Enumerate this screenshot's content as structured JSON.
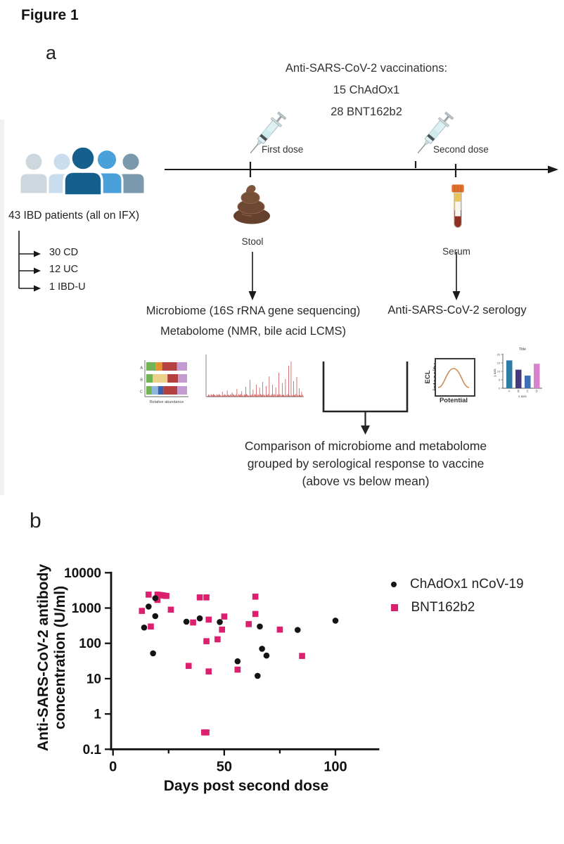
{
  "figure": {
    "label": "Figure 1",
    "panel_a_label": "a",
    "panel_b_label": "b"
  },
  "panel_a": {
    "vaccinations_line1": "Anti-SARS-CoV-2 vaccinations:",
    "vaccinations_line2": "15 ChAdOx1",
    "vaccinations_line3": "28 BNT162b2",
    "first_dose_label": "First dose",
    "second_dose_label": "Second dose",
    "stool_label": "Stool",
    "serum_label": "Serum",
    "patients_title": "43 IBD patients (all on IFX)",
    "patient_groups": [
      "30 CD",
      "12 UC",
      "1 IBD-U"
    ],
    "people_colors": [
      "#cdd7de",
      "#c9ddee",
      "#155f8d",
      "#4aa0d8",
      "#7b99ac"
    ],
    "microbiome_line1": "Microbiome (16S rRNA gene sequencing)",
    "microbiome_line2": "Metabolome (NMR, bile acid LCMS)",
    "serology_label": "Anti-SARS-CoV-2 serology",
    "comparison_line1": "Comparison of microbiome and metabolome",
    "comparison_line2": "grouped by serological response to vaccine",
    "comparison_line3": "(above vs below mean)",
    "thumbnails": {
      "stacked_bar": {
        "xlabel": "Relative abundance",
        "row_labels": [
          "A",
          "B",
          "C"
        ],
        "rows": [
          {
            "segments": [
              {
                "color": "#72b356",
                "w": 0.23
              },
              {
                "color": "#e2952f",
                "w": 0.16
              },
              {
                "color": "#b54040",
                "w": 0.36
              },
              {
                "color": "#c49bd1",
                "w": 0.25
              }
            ]
          },
          {
            "segments": [
              {
                "color": "#72b356",
                "w": 0.16
              },
              {
                "color": "#ecd189",
                "w": 0.36
              },
              {
                "color": "#b54040",
                "w": 0.26
              },
              {
                "color": "#c49bd1",
                "w": 0.22
              }
            ]
          },
          {
            "segments": [
              {
                "color": "#72b356",
                "w": 0.13
              },
              {
                "color": "#90b8dc",
                "w": 0.16
              },
              {
                "color": "#3a62ae",
                "w": 0.13
              },
              {
                "color": "#b54040",
                "w": 0.34
              },
              {
                "color": "#c49bd1",
                "w": 0.24
              }
            ]
          }
        ]
      },
      "spectrum": {
        "color": "#c62828"
      },
      "ecl": {
        "ylabel": "ECL intensity",
        "xlabel": "Potential",
        "curve_color": "#cf8a52"
      },
      "mini_bar": {
        "title": "Title",
        "xlabel": "x axis",
        "ylabel": "y axis",
        "categories": [
          "A",
          "B",
          "C",
          "D"
        ],
        "values": [
          16.5,
          11,
          7.5,
          14.5
        ],
        "ymax": 20,
        "y_ticks": [
          0,
          5,
          10,
          15,
          20
        ],
        "colors": [
          "#2e7ca6",
          "#463a7c",
          "#3f6fb5",
          "#d983cf"
        ]
      }
    }
  },
  "chart_data": {
    "type": "scatter",
    "title": "",
    "xlabel": "Days post second dose",
    "ylabel_line1": "Anti-SARS-CoV-2 antibody",
    "ylabel_line2": "concentration (U/ml)",
    "x_ticks": [
      0,
      50,
      100
    ],
    "x_tick_labels": [
      "0",
      "50",
      "100"
    ],
    "x_minor_ticks": [
      25,
      75
    ],
    "xlim": [
      0,
      120
    ],
    "y_scale": "log",
    "y_ticks": [
      10000,
      1000,
      100,
      10,
      1,
      0.1
    ],
    "y_tick_labels": [
      "10000",
      "1000",
      "100",
      "10",
      "1",
      "0.1"
    ],
    "ylim": [
      0.1,
      10000
    ],
    "grid": false,
    "legend_position": "right",
    "series": [
      {
        "name": "ChAdOx1 nCoV-19",
        "marker": "circle",
        "color": "#141414",
        "points": [
          [
            14,
            280
          ],
          [
            16,
            1100
          ],
          [
            18,
            52
          ],
          [
            19,
            1900
          ],
          [
            19,
            590
          ],
          [
            33,
            410
          ],
          [
            39,
            510
          ],
          [
            48,
            400
          ],
          [
            56,
            31
          ],
          [
            65,
            12
          ],
          [
            66,
            300
          ],
          [
            67,
            70
          ],
          [
            69,
            45
          ],
          [
            83,
            240
          ],
          [
            100,
            440
          ]
        ]
      },
      {
        "name": "BNT162b2",
        "marker": "square",
        "color": "#dc1f6e",
        "points": [
          [
            13,
            830
          ],
          [
            16,
            2400
          ],
          [
            17,
            300
          ],
          [
            20,
            2400
          ],
          [
            21,
            2350
          ],
          [
            22,
            2300
          ],
          [
            23,
            2250
          ],
          [
            24,
            2200
          ],
          [
            20,
            1700
          ],
          [
            26,
            900
          ],
          [
            34,
            23
          ],
          [
            36,
            390
          ],
          [
            39,
            2000
          ],
          [
            41,
            0.3
          ],
          [
            42,
            0.3
          ],
          [
            42,
            2000
          ],
          [
            42,
            115
          ],
          [
            43,
            470
          ],
          [
            43,
            16
          ],
          [
            47,
            130
          ],
          [
            49,
            245
          ],
          [
            50,
            575
          ],
          [
            56,
            18
          ],
          [
            61,
            350
          ],
          [
            64,
            2100
          ],
          [
            64,
            680
          ],
          [
            75,
            245
          ],
          [
            85,
            44
          ]
        ]
      }
    ]
  }
}
